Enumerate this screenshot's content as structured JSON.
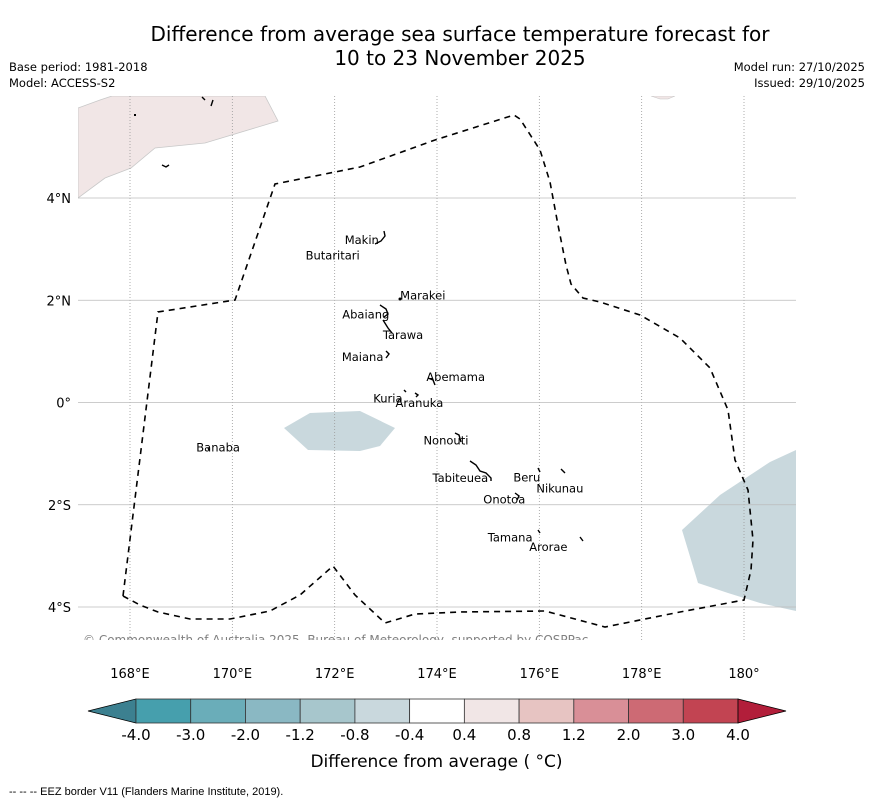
{
  "header": {
    "title_line1": "Difference from average sea surface temperature forecast for",
    "title_line2": "10 to 23 November 2025",
    "base_period": "Base period: 1981-2018",
    "model": "Model: ACCESS-S2",
    "model_run": "Model run: 27/10/2025",
    "issued": "Issued: 29/10/2025"
  },
  "map": {
    "lon_ticks": [
      "168°E",
      "170°E",
      "172°E",
      "174°E",
      "176°E",
      "178°E",
      "180°"
    ],
    "lat_ticks": [
      "4°N",
      "2°N",
      "0°",
      "2°S",
      "4°S"
    ],
    "copyright": "© Commonwealth of Australia 2025, Bureau of Meteorology, supported by COSPPac",
    "islands": [
      {
        "name": "Makin",
        "lon": 172.9,
        "lat": 3.2
      },
      {
        "name": "Butaritari",
        "lon": 172.8,
        "lat": 3.05
      },
      {
        "name": "Marakei",
        "lon": 173.3,
        "lat": 2.0
      },
      {
        "name": "Abaiang",
        "lon": 172.95,
        "lat": 1.8
      },
      {
        "name": "Tarawa",
        "lon": 173.0,
        "lat": 1.4
      },
      {
        "name": "Maiana",
        "lon": 173.0,
        "lat": 0.95
      },
      {
        "name": "Abemama",
        "lon": 173.85,
        "lat": 0.4
      },
      {
        "name": "Kuria",
        "lon": 173.4,
        "lat": 0.22
      },
      {
        "name": "Aranuka",
        "lon": 173.6,
        "lat": 0.15
      },
      {
        "name": "Nonouti",
        "lon": 174.4,
        "lat": -0.65
      },
      {
        "name": "Banaba",
        "lon": 169.55,
        "lat": -0.86
      },
      {
        "name": "Tabiteuea",
        "lon": 174.85,
        "lat": -1.3
      },
      {
        "name": "Beru",
        "lon": 176.0,
        "lat": -1.35
      },
      {
        "name": "Nikunau",
        "lon": 176.45,
        "lat": -1.35
      },
      {
        "name": "Onotoa",
        "lon": 175.55,
        "lat": -1.8
      },
      {
        "name": "Tamana",
        "lon": 175.95,
        "lat": -2.5
      },
      {
        "name": "Arorae",
        "lon": 176.8,
        "lat": -2.65
      }
    ],
    "extent": {
      "lon": [
        167.1,
        181.0
      ],
      "lat": [
        -4.8,
        5.9
      ]
    },
    "anomaly_areas": [
      {
        "category": "-0.8 to -0.4",
        "description": "small cool patch west of equator near 172°E"
      },
      {
        "category": "-0.8 to -0.4",
        "description": "cool area east of 179°E south of 1°S"
      },
      {
        "category": "0.4 to 0.8",
        "description": "warm area north-west near 168-171°E, 4-6°N"
      }
    ]
  },
  "colorbar": {
    "label": "Difference from average ( °C)",
    "ticks": [
      "-4.0",
      "-3.0",
      "-2.0",
      "-1.2",
      "-0.8",
      "-0.4",
      "0.4",
      "0.8",
      "1.2",
      "2.0",
      "3.0",
      "4.0"
    ],
    "colors": [
      "#3c8090",
      "#469fad",
      "#6aadb9",
      "#8ab8c3",
      "#a7c6cc",
      "#c9d8dd",
      "#ffffff",
      "#f1e6e6",
      "#e7c4c2",
      "#d98f97",
      "#cd6a74",
      "#c24452",
      "#b21e3a"
    ]
  },
  "footer": {
    "eez_note": "--  --  -- EEZ border V11 (Flanders Marine Institute, 2019)."
  }
}
